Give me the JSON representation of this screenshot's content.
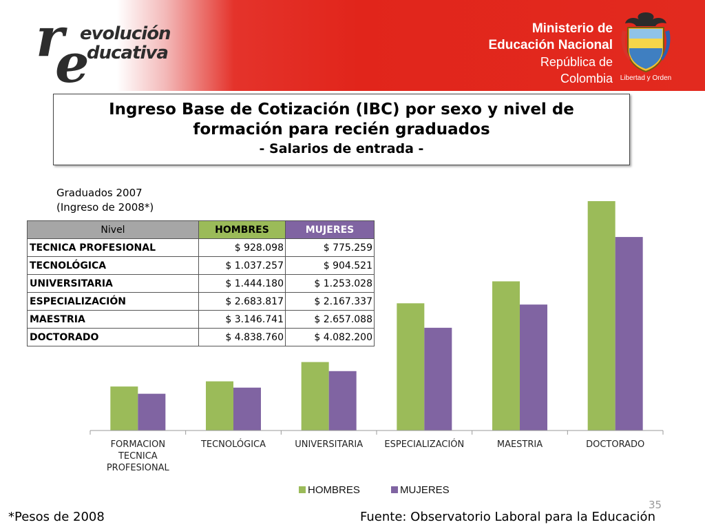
{
  "header": {
    "logo": {
      "line1": "evolución",
      "line2": "ducativa",
      "letter_r": "r",
      "letter_e": "e"
    },
    "ministerio": {
      "line1": "Ministerio de",
      "line2": "Educación Nacional",
      "line3": "República de Colombia"
    },
    "motto": "Libertad y Orden"
  },
  "title": {
    "line1": "Ingreso Base de Cotización (IBC) por sexo  y nivel de",
    "line2": "formación para recién graduados",
    "line3": "- Salarios de entrada -"
  },
  "subtitle": {
    "line1": "Graduados 2007",
    "line2": "(Ingreso de 2008*)"
  },
  "table": {
    "headers": [
      "Nivel",
      "HOMBRES",
      "MUJERES"
    ],
    "rows": [
      [
        "TECNICA PROFESIONAL",
        "$ 928.098",
        "$ 775.259"
      ],
      [
        "TECNOLÓGICA",
        "$ 1.037.257",
        "$ 904.521"
      ],
      [
        "UNIVERSITARIA",
        "$ 1.444.180",
        "$ 1.253.028"
      ],
      [
        "ESPECIALIZACIÓN",
        "$ 2.683.817",
        "$ 2.167.337"
      ],
      [
        "MAESTRIA",
        "$ 3.146.741",
        "$ 2.657.088"
      ],
      [
        "DOCTORADO",
        "$ 4.838.760",
        "$ 4.082.200"
      ]
    ]
  },
  "chart_data": {
    "type": "bar",
    "categories": [
      [
        "FORMACION",
        "TECNICA",
        "PROFESIONAL"
      ],
      [
        "TECNOLÓGICA"
      ],
      [
        "UNIVERSITARIA"
      ],
      [
        "ESPECIALIZACIÓN"
      ],
      [
        "MAESTRIA"
      ],
      [
        "DOCTORADO"
      ]
    ],
    "series": [
      {
        "name": "HOMBRES",
        "values": [
          928098,
          1037257,
          1444180,
          2683817,
          3146741,
          4838760
        ],
        "color": "#9bbb59"
      },
      {
        "name": "MUJERES",
        "values": [
          775259,
          904521,
          1253028,
          2167337,
          2657088,
          4082200
        ],
        "color": "#8064a2"
      }
    ],
    "ylim": [
      0,
      4650000
    ],
    "legend_position": "bottom",
    "grid": false,
    "title": "",
    "xlabel": "",
    "ylabel": ""
  },
  "footer": {
    "note": "*Pesos de 2008",
    "source": "Fuente: Observatorio Laboral para la Educación",
    "page_number": "35"
  }
}
